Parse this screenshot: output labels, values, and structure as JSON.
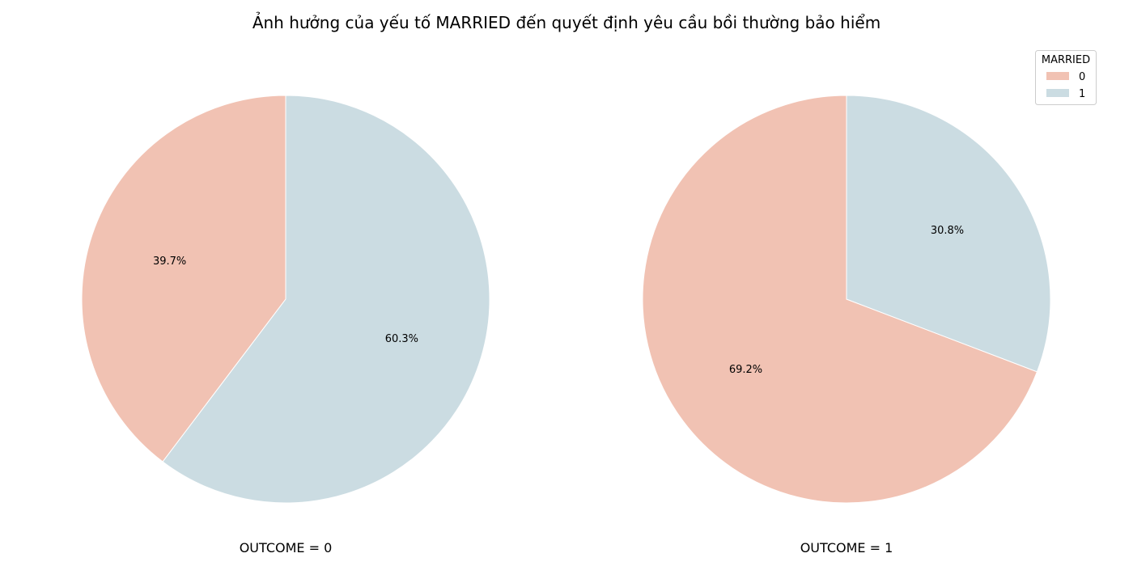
{
  "figure": {
    "title": "Ảnh hưởng của yếu tố MARRIED đến quyết định yêu cầu bồi thường bảo hiểm"
  },
  "legend": {
    "title": "MARRIED",
    "placement": "top-right",
    "entries": [
      {
        "label": "0",
        "color": "#f1c2b3"
      },
      {
        "label": "1",
        "color": "#cbdce2"
      }
    ]
  },
  "chart_data": [
    {
      "type": "pie",
      "xlabel": "OUTCOME = 0",
      "categories": [
        "0",
        "1"
      ],
      "values": [
        39.7,
        60.3
      ],
      "labels": [
        "39.7%",
        "60.3%"
      ],
      "colors": [
        "#f1c2b3",
        "#cbdce2"
      ],
      "start_angle_deg": 90,
      "direction": "counterclockwise"
    },
    {
      "type": "pie",
      "xlabel": "OUTCOME = 1",
      "categories": [
        "0",
        "1"
      ],
      "values": [
        69.2,
        30.8
      ],
      "labels": [
        "69.2%",
        "30.8%"
      ],
      "colors": [
        "#f1c2b3",
        "#cbdce2"
      ],
      "start_angle_deg": 90,
      "direction": "counterclockwise"
    }
  ]
}
